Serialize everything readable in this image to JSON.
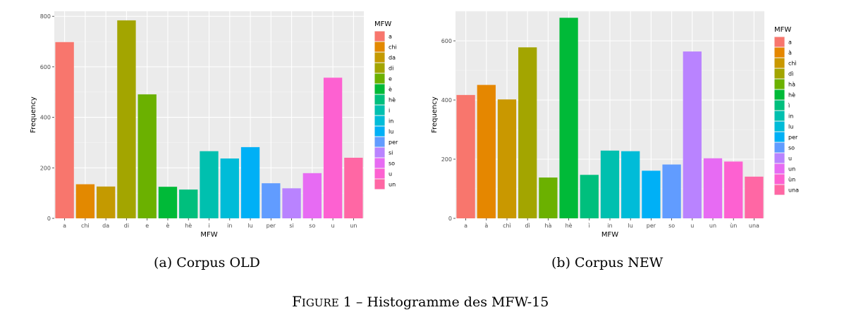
{
  "figure": {
    "caption_label_first": "F",
    "caption_label_rest": "igure",
    "caption_number": "1",
    "caption_separator": "–",
    "caption_text": "Histogramme des MFW-15"
  },
  "chart_data": [
    {
      "type": "bar",
      "caption": "(a) Corpus OLD",
      "xlabel": "MFW",
      "ylabel": "Frequency",
      "legend_title": "MFW",
      "legend_placement": "right",
      "grid": true,
      "ylim": [
        0,
        820
      ],
      "yticks": [
        0,
        200,
        400,
        600,
        800
      ],
      "categories": [
        "a",
        "chi",
        "da",
        "di",
        "e",
        "è",
        "hè",
        "i",
        "in",
        "lu",
        "per",
        "si",
        "so",
        "u",
        "un"
      ],
      "values": [
        698,
        135,
        126,
        784,
        491,
        125,
        114,
        266,
        237,
        282,
        139,
        119,
        179,
        557,
        240
      ],
      "colors": [
        "#F8766D",
        "#E38900",
        "#C49A00",
        "#A3A500",
        "#6BB100",
        "#00BA38",
        "#00BF7D",
        "#00C0AF",
        "#00BCD8",
        "#00B0F6",
        "#619CFF",
        "#B983FF",
        "#E76BF3",
        "#FD61D1",
        "#FF67A4"
      ]
    },
    {
      "type": "bar",
      "caption": "(b) Corpus NEW",
      "xlabel": "MFW",
      "ylabel": "Frequency",
      "legend_title": "MFW",
      "legend_placement": "right",
      "grid": true,
      "ylim": [
        0,
        700
      ],
      "yticks": [
        0,
        200,
        400,
        600
      ],
      "categories": [
        "a",
        "à",
        "chì",
        "dì",
        "hà",
        "hè",
        "ì",
        "in",
        "lu",
        "per",
        "so",
        "u",
        "un",
        "ùn",
        "una"
      ],
      "values": [
        417,
        451,
        402,
        578,
        138,
        678,
        147,
        229,
        227,
        161,
        182,
        564,
        203,
        192,
        141
      ],
      "colors": [
        "#F8766D",
        "#E58700",
        "#C99800",
        "#A3A500",
        "#6BB100",
        "#00BA38",
        "#00BF7D",
        "#00C0AF",
        "#00BCD8",
        "#00B0F6",
        "#619CFF",
        "#B983FF",
        "#E76BF3",
        "#FD61D1",
        "#FF67A4"
      ]
    }
  ]
}
